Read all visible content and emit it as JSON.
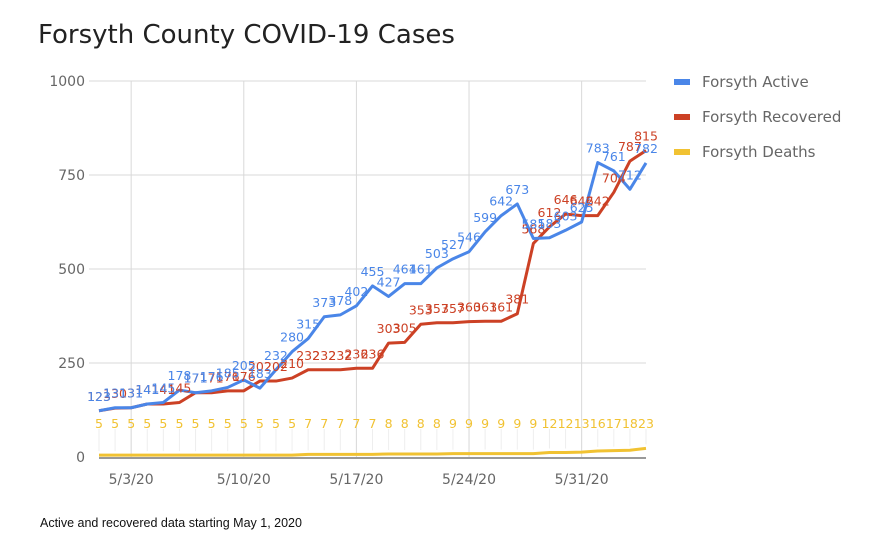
{
  "chart_data": {
    "type": "line",
    "title": "Forsyth County COVID-19 Cases",
    "xlabel": "",
    "ylabel": "",
    "ylim": [
      0,
      1000
    ],
    "yticks": [
      "0",
      "250",
      "500",
      "750",
      "1000"
    ],
    "ytick_values": [
      0,
      250,
      500,
      750,
      1000
    ],
    "grid": true,
    "legend_position": "right",
    "x": [
      "5/1/20",
      "5/2/20",
      "5/3/20",
      "5/4/20",
      "5/5/20",
      "5/6/20",
      "5/7/20",
      "5/8/20",
      "5/9/20",
      "5/10/20",
      "5/11/20",
      "5/12/20",
      "5/13/20",
      "5/14/20",
      "5/15/20",
      "5/16/20",
      "5/17/20",
      "5/18/20",
      "5/19/20",
      "5/20/20",
      "5/21/20",
      "5/22/20",
      "5/23/20",
      "5/24/20",
      "5/25/20",
      "5/26/20",
      "5/27/20",
      "5/28/20",
      "5/29/20",
      "5/30/20",
      "5/31/20",
      "6/1/20",
      "6/2/20",
      "6/3/20",
      "6/4/20"
    ],
    "xtick_labels": [
      "5/3/20",
      "5/10/20",
      "5/17/20",
      "5/24/20",
      "5/31/20"
    ],
    "xtick_indices": [
      2,
      9,
      16,
      23,
      30
    ],
    "series": [
      {
        "name": "Forsyth Active",
        "color": "#4a86e8",
        "values": [
          123,
          131,
          131,
          141,
          145,
          178,
          171,
          176,
          185,
          205,
          183,
          232,
          280,
          315,
          373,
          378,
          402,
          455,
          427,
          461,
          461,
          503,
          527,
          546,
          599,
          642,
          673,
          581,
          583,
          603,
          625,
          783,
          761,
          712,
          782
        ]
      },
      {
        "name": "Forsyth Recovered",
        "color": "#cc4125",
        "values": [
          123,
          130,
          131,
          141,
          141,
          145,
          171,
          171,
          176,
          176,
          202,
          202,
          210,
          232,
          232,
          232,
          236,
          236,
          303,
          305,
          353,
          357,
          357,
          360,
          361,
          361,
          381,
          568,
          612,
          646,
          642,
          642,
          704,
          787,
          815
        ]
      },
      {
        "name": "Forsyth Deaths",
        "color": "#f1c232",
        "values": [
          5,
          5,
          5,
          5,
          5,
          5,
          5,
          5,
          5,
          5,
          5,
          5,
          5,
          7,
          7,
          7,
          7,
          7,
          8,
          8,
          8,
          8,
          9,
          9,
          9,
          9,
          9,
          9,
          12,
          12,
          13,
          16,
          17,
          18,
          23
        ]
      }
    ]
  },
  "footnote": "Active and recovered data starting May 1, 2020"
}
